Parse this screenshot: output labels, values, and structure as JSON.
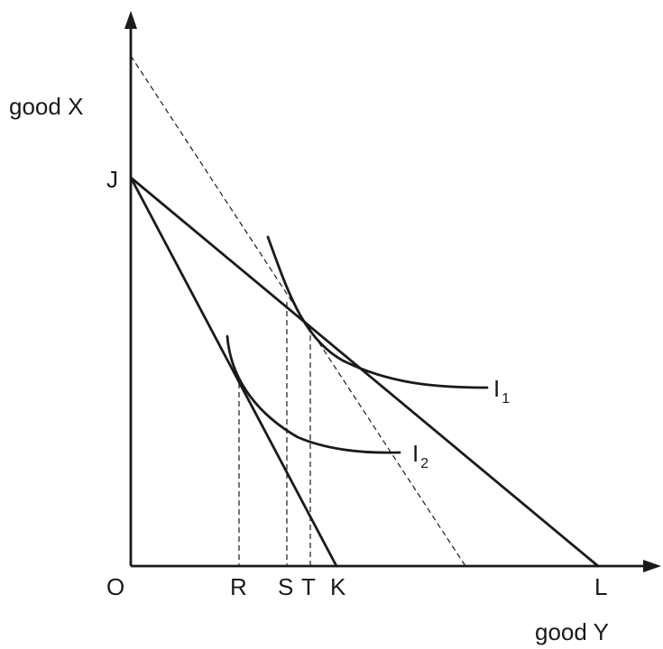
{
  "axes": {
    "y_label": "good X",
    "x_label": "good Y",
    "origin_label": "O"
  },
  "points": {
    "J": "J",
    "K": "K",
    "L": "L",
    "R": "R",
    "S": "S",
    "T": "T"
  },
  "curves": {
    "I1": {
      "letter": "I",
      "sub": "1"
    },
    "I2": {
      "letter": "I",
      "sub": "2"
    }
  },
  "colors": {
    "ink": "#1a1a1a",
    "background": "#ffffff"
  }
}
